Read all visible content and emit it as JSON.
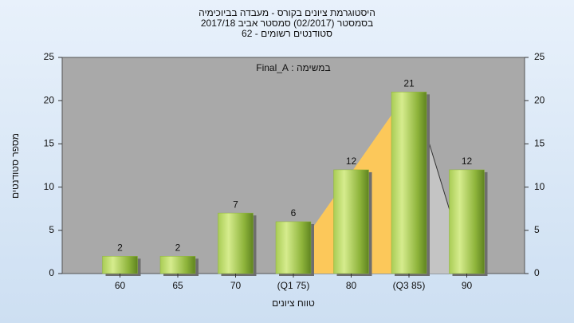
{
  "chart_data": {
    "type": "bar",
    "title_lines": [
      "היסטוגרמת ציונים בקורס - מעבדה בביוכימיה",
      "בסמסטר  (02/2017)  סמסטר אביב 2017/18",
      "סטודנטים רשומים - 62"
    ],
    "annotation": "במשימה : Final_A",
    "x_label": "טווח ציונים",
    "y_label": "מספר סטודנטים",
    "categories": [
      "60",
      "65",
      "70",
      "(Q1 75)",
      "80",
      "(Q3 85)",
      "90"
    ],
    "values": [
      2,
      2,
      7,
      6,
      12,
      21,
      12
    ],
    "color": "#8db33a",
    "ylim": [
      0,
      25
    ],
    "yticks": [
      0,
      5,
      10,
      15,
      20,
      25
    ],
    "y2lim": [
      0,
      25
    ],
    "y2ticks": [
      0,
      5,
      10,
      15,
      20,
      25
    ]
  }
}
